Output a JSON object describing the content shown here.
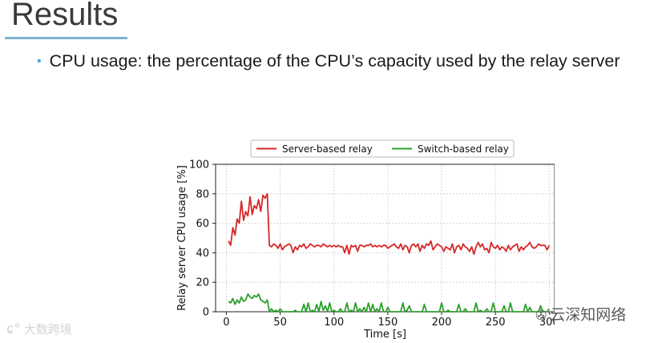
{
  "slide": {
    "title": "Results",
    "bullet": "CPU usage: the percentage of the CPU’s capacity used by the relay server"
  },
  "watermarks": {
    "left": "大数跨境",
    "right": "云深知网络"
  },
  "chart_data": {
    "type": "line",
    "xlabel": "Time [s]",
    "ylabel": "Relay server CPU usage [%]",
    "xlim": [
      -10,
      305
    ],
    "ylim": [
      0,
      100
    ],
    "xticks": [
      0,
      50,
      100,
      150,
      200,
      250,
      300
    ],
    "yticks": [
      0,
      20,
      40,
      60,
      80,
      100
    ],
    "grid": true,
    "legend_position": "top-center",
    "series": [
      {
        "name": "Server-based relay",
        "color": "#d62728",
        "x": [
          2,
          4,
          6,
          8,
          10,
          12,
          14,
          16,
          18,
          20,
          22,
          24,
          26,
          28,
          30,
          32,
          34,
          36,
          38,
          40,
          42,
          44,
          46,
          48,
          50,
          52,
          54,
          56,
          58,
          60,
          62,
          64,
          66,
          68,
          70,
          72,
          74,
          76,
          78,
          80,
          82,
          84,
          86,
          88,
          90,
          92,
          94,
          96,
          98,
          100,
          102,
          104,
          106,
          108,
          110,
          112,
          114,
          116,
          118,
          120,
          122,
          124,
          126,
          128,
          130,
          132,
          134,
          136,
          138,
          140,
          142,
          144,
          146,
          148,
          150,
          152,
          154,
          156,
          158,
          160,
          162,
          164,
          166,
          168,
          170,
          172,
          174,
          176,
          178,
          180,
          182,
          184,
          186,
          188,
          190,
          192,
          194,
          196,
          198,
          200,
          202,
          204,
          206,
          208,
          210,
          212,
          214,
          216,
          218,
          220,
          222,
          224,
          226,
          228,
          230,
          232,
          234,
          236,
          238,
          240,
          242,
          244,
          246,
          248,
          250,
          252,
          254,
          256,
          258,
          260,
          262,
          264,
          266,
          268,
          270,
          272,
          274,
          276,
          278,
          280,
          282,
          284,
          286,
          288,
          290,
          292,
          294,
          296,
          298,
          300
        ],
        "y": [
          48,
          45,
          57,
          52,
          63,
          60,
          75,
          62,
          68,
          65,
          78,
          66,
          72,
          70,
          76,
          68,
          79,
          77,
          80,
          45,
          44,
          46,
          45,
          43,
          46,
          42,
          44,
          45,
          46,
          45,
          40,
          44,
          42,
          45,
          44,
          46,
          43,
          44,
          46,
          45,
          44,
          45,
          45,
          44,
          46,
          45,
          44,
          45,
          44,
          45,
          44,
          45,
          44,
          44,
          40,
          45,
          39,
          45,
          44,
          45,
          41,
          45,
          45,
          44,
          45,
          45,
          46,
          44,
          45,
          44,
          45,
          44,
          45,
          45,
          43,
          44,
          45,
          46,
          44,
          43,
          46,
          42,
          45,
          44,
          40,
          45,
          46,
          44,
          46,
          41,
          45,
          43,
          46,
          45,
          48,
          42,
          44,
          46,
          45,
          44,
          41,
          44,
          43,
          42,
          46,
          40,
          44,
          45,
          42,
          46,
          44,
          43,
          41,
          44,
          39,
          44,
          47,
          44,
          46,
          42,
          43,
          40,
          47,
          44,
          43,
          45,
          42,
          44,
          43,
          41,
          45,
          42,
          44,
          45,
          46,
          41,
          44,
          42,
          44,
          45,
          47,
          44,
          43,
          44,
          46,
          45,
          45,
          45,
          42,
          45
        ]
      },
      {
        "name": "Switch-based relay",
        "color": "#2ca02c",
        "x": [
          2,
          4,
          6,
          8,
          10,
          12,
          14,
          16,
          18,
          20,
          22,
          24,
          26,
          28,
          30,
          32,
          34,
          36,
          38,
          40,
          42,
          44,
          46,
          48,
          50,
          52,
          54,
          56,
          58,
          60,
          62,
          64,
          66,
          68,
          70,
          72,
          74,
          76,
          78,
          80,
          82,
          84,
          86,
          88,
          90,
          92,
          94,
          96,
          98,
          100,
          102,
          104,
          106,
          108,
          110,
          112,
          114,
          116,
          118,
          120,
          122,
          124,
          126,
          128,
          130,
          132,
          134,
          136,
          138,
          140,
          142,
          144,
          146,
          148,
          150,
          152,
          154,
          156,
          158,
          160,
          162,
          164,
          166,
          168,
          170,
          172,
          174,
          176,
          178,
          180,
          182,
          184,
          186,
          188,
          190,
          192,
          194,
          196,
          198,
          200,
          202,
          204,
          206,
          208,
          210,
          212,
          214,
          216,
          218,
          220,
          222,
          224,
          226,
          228,
          230,
          232,
          234,
          236,
          238,
          240,
          242,
          244,
          246,
          248,
          250,
          252,
          254,
          256,
          258,
          260,
          262,
          264,
          266,
          268,
          270,
          272,
          274,
          276,
          278,
          280,
          282,
          284,
          286,
          288,
          290,
          292,
          294,
          296,
          298,
          300
        ],
        "y": [
          7,
          6,
          9,
          5,
          8,
          6,
          10,
          7,
          8,
          12,
          10,
          9,
          11,
          10,
          12,
          8,
          7,
          6,
          8,
          0,
          2,
          0,
          1,
          0,
          2,
          0,
          0,
          0,
          0,
          0,
          0,
          1,
          0,
          0,
          0,
          5,
          0,
          6,
          0,
          1,
          0,
          5,
          0,
          7,
          1,
          4,
          0,
          6,
          0,
          1,
          0,
          0,
          2,
          0,
          0,
          6,
          0,
          1,
          0,
          6,
          0,
          2,
          0,
          3,
          0,
          6,
          0,
          5,
          0,
          2,
          0,
          6,
          0,
          0,
          3,
          0,
          0,
          0,
          0,
          0,
          0,
          6,
          0,
          1,
          4,
          0,
          0,
          0,
          0,
          0,
          0,
          5,
          0,
          0,
          0,
          0,
          0,
          0,
          0,
          6,
          0,
          0,
          1,
          0,
          0,
          0,
          0,
          5,
          0,
          0,
          2,
          0,
          0,
          0,
          0,
          6,
          0,
          1,
          0,
          0,
          2,
          0,
          0,
          6,
          0,
          0,
          0,
          0,
          4,
          0,
          0,
          6,
          0,
          0,
          0,
          0,
          0,
          0,
          5,
          0,
          3,
          0,
          0,
          0,
          0,
          4,
          0,
          0,
          0,
          2
        ]
      }
    ]
  }
}
